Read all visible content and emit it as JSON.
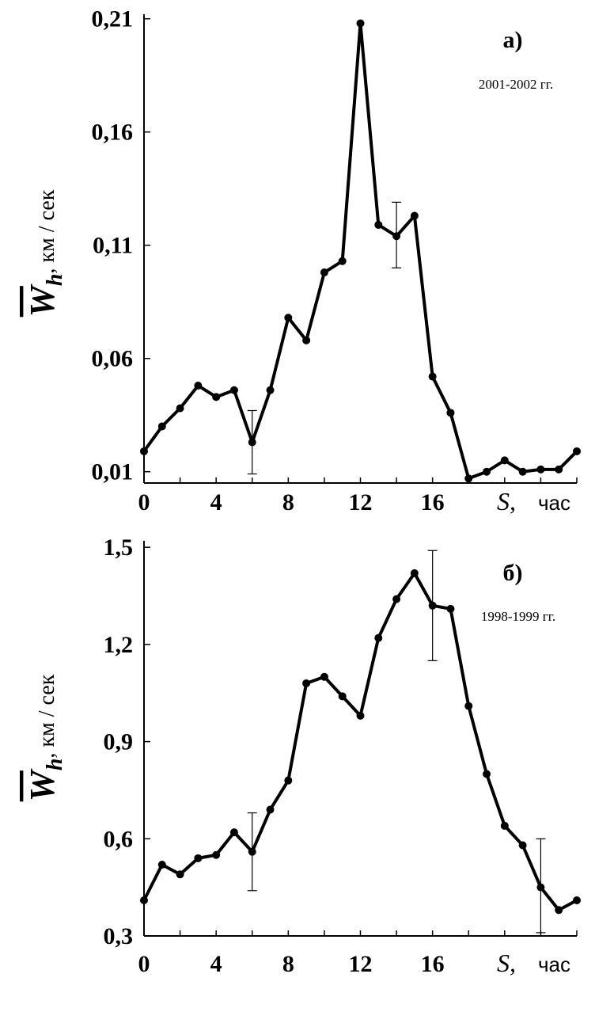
{
  "chart_data": [
    {
      "type": "line",
      "panel_label": "а)",
      "period": "2001-2002 гг.",
      "ylabel": {
        "symbol": "W",
        "subscript": "h",
        "unit": ", км / сек"
      },
      "xlabel": {
        "symbol": "S,",
        "unit": "час"
      },
      "xlim": [
        0,
        24
      ],
      "ylim": [
        0.005,
        0.212
      ],
      "yticks": [
        {
          "value": 0.21,
          "label": "0,21"
        },
        {
          "value": 0.16,
          "label": "0,16"
        },
        {
          "value": 0.11,
          "label": "0,11"
        },
        {
          "value": 0.06,
          "label": "0,06"
        },
        {
          "value": 0.01,
          "label": "0,01"
        }
      ],
      "xticks": [
        {
          "value": 0,
          "label": "0"
        },
        {
          "value": 4,
          "label": "4"
        },
        {
          "value": 8,
          "label": "8"
        },
        {
          "value": 12,
          "label": "12"
        },
        {
          "value": 16,
          "label": "16"
        }
      ],
      "x": [
        0,
        1,
        2,
        3,
        4,
        5,
        6,
        7,
        8,
        9,
        10,
        11,
        12,
        13,
        14,
        15,
        16,
        17,
        18,
        19,
        20,
        21,
        22,
        23,
        24
      ],
      "y": [
        0.019,
        0.03,
        0.038,
        0.048,
        0.043,
        0.046,
        0.023,
        0.046,
        0.078,
        0.068,
        0.098,
        0.103,
        0.208,
        0.119,
        0.114,
        0.123,
        0.052,
        0.036,
        0.007,
        0.01,
        0.015,
        0.01,
        0.011,
        0.011,
        0.019
      ],
      "error_bars": [
        {
          "x": 6,
          "low": 0.009,
          "high": 0.037
        },
        {
          "x": 14,
          "low": 0.1,
          "high": 0.129
        }
      ]
    },
    {
      "type": "line",
      "panel_label": "б)",
      "period": "1998-1999 гг.",
      "ylabel": {
        "symbol": "W",
        "subscript": "h",
        "unit": ", км / сек"
      },
      "xlabel": {
        "symbol": "S,",
        "unit": "час"
      },
      "xlim": [
        0,
        24
      ],
      "ylim": [
        0.3,
        1.52
      ],
      "yticks": [
        {
          "value": 1.5,
          "label": "1,5"
        },
        {
          "value": 1.2,
          "label": "1,2"
        },
        {
          "value": 0.9,
          "label": "0,9"
        },
        {
          "value": 0.6,
          "label": "0,6"
        },
        {
          "value": 0.3,
          "label": "0,3"
        }
      ],
      "xticks": [
        {
          "value": 0,
          "label": "0"
        },
        {
          "value": 4,
          "label": "4"
        },
        {
          "value": 8,
          "label": "8"
        },
        {
          "value": 12,
          "label": "12"
        },
        {
          "value": 16,
          "label": "16"
        }
      ],
      "x": [
        0,
        1,
        2,
        3,
        4,
        5,
        6,
        7,
        8,
        9,
        10,
        11,
        12,
        13,
        14,
        15,
        16,
        17,
        18,
        19,
        20,
        21,
        22,
        23,
        24
      ],
      "y": [
        0.41,
        0.52,
        0.49,
        0.54,
        0.55,
        0.62,
        0.56,
        0.69,
        0.78,
        1.08,
        1.1,
        1.04,
        0.98,
        1.22,
        1.34,
        1.42,
        1.32,
        1.31,
        1.01,
        0.8,
        0.64,
        0.58,
        0.45,
        0.38,
        0.41
      ],
      "error_bars": [
        {
          "x": 6,
          "low": 0.44,
          "high": 0.68
        },
        {
          "x": 16,
          "low": 1.15,
          "high": 1.49
        },
        {
          "x": 22,
          "low": 0.31,
          "high": 0.6
        }
      ]
    }
  ]
}
